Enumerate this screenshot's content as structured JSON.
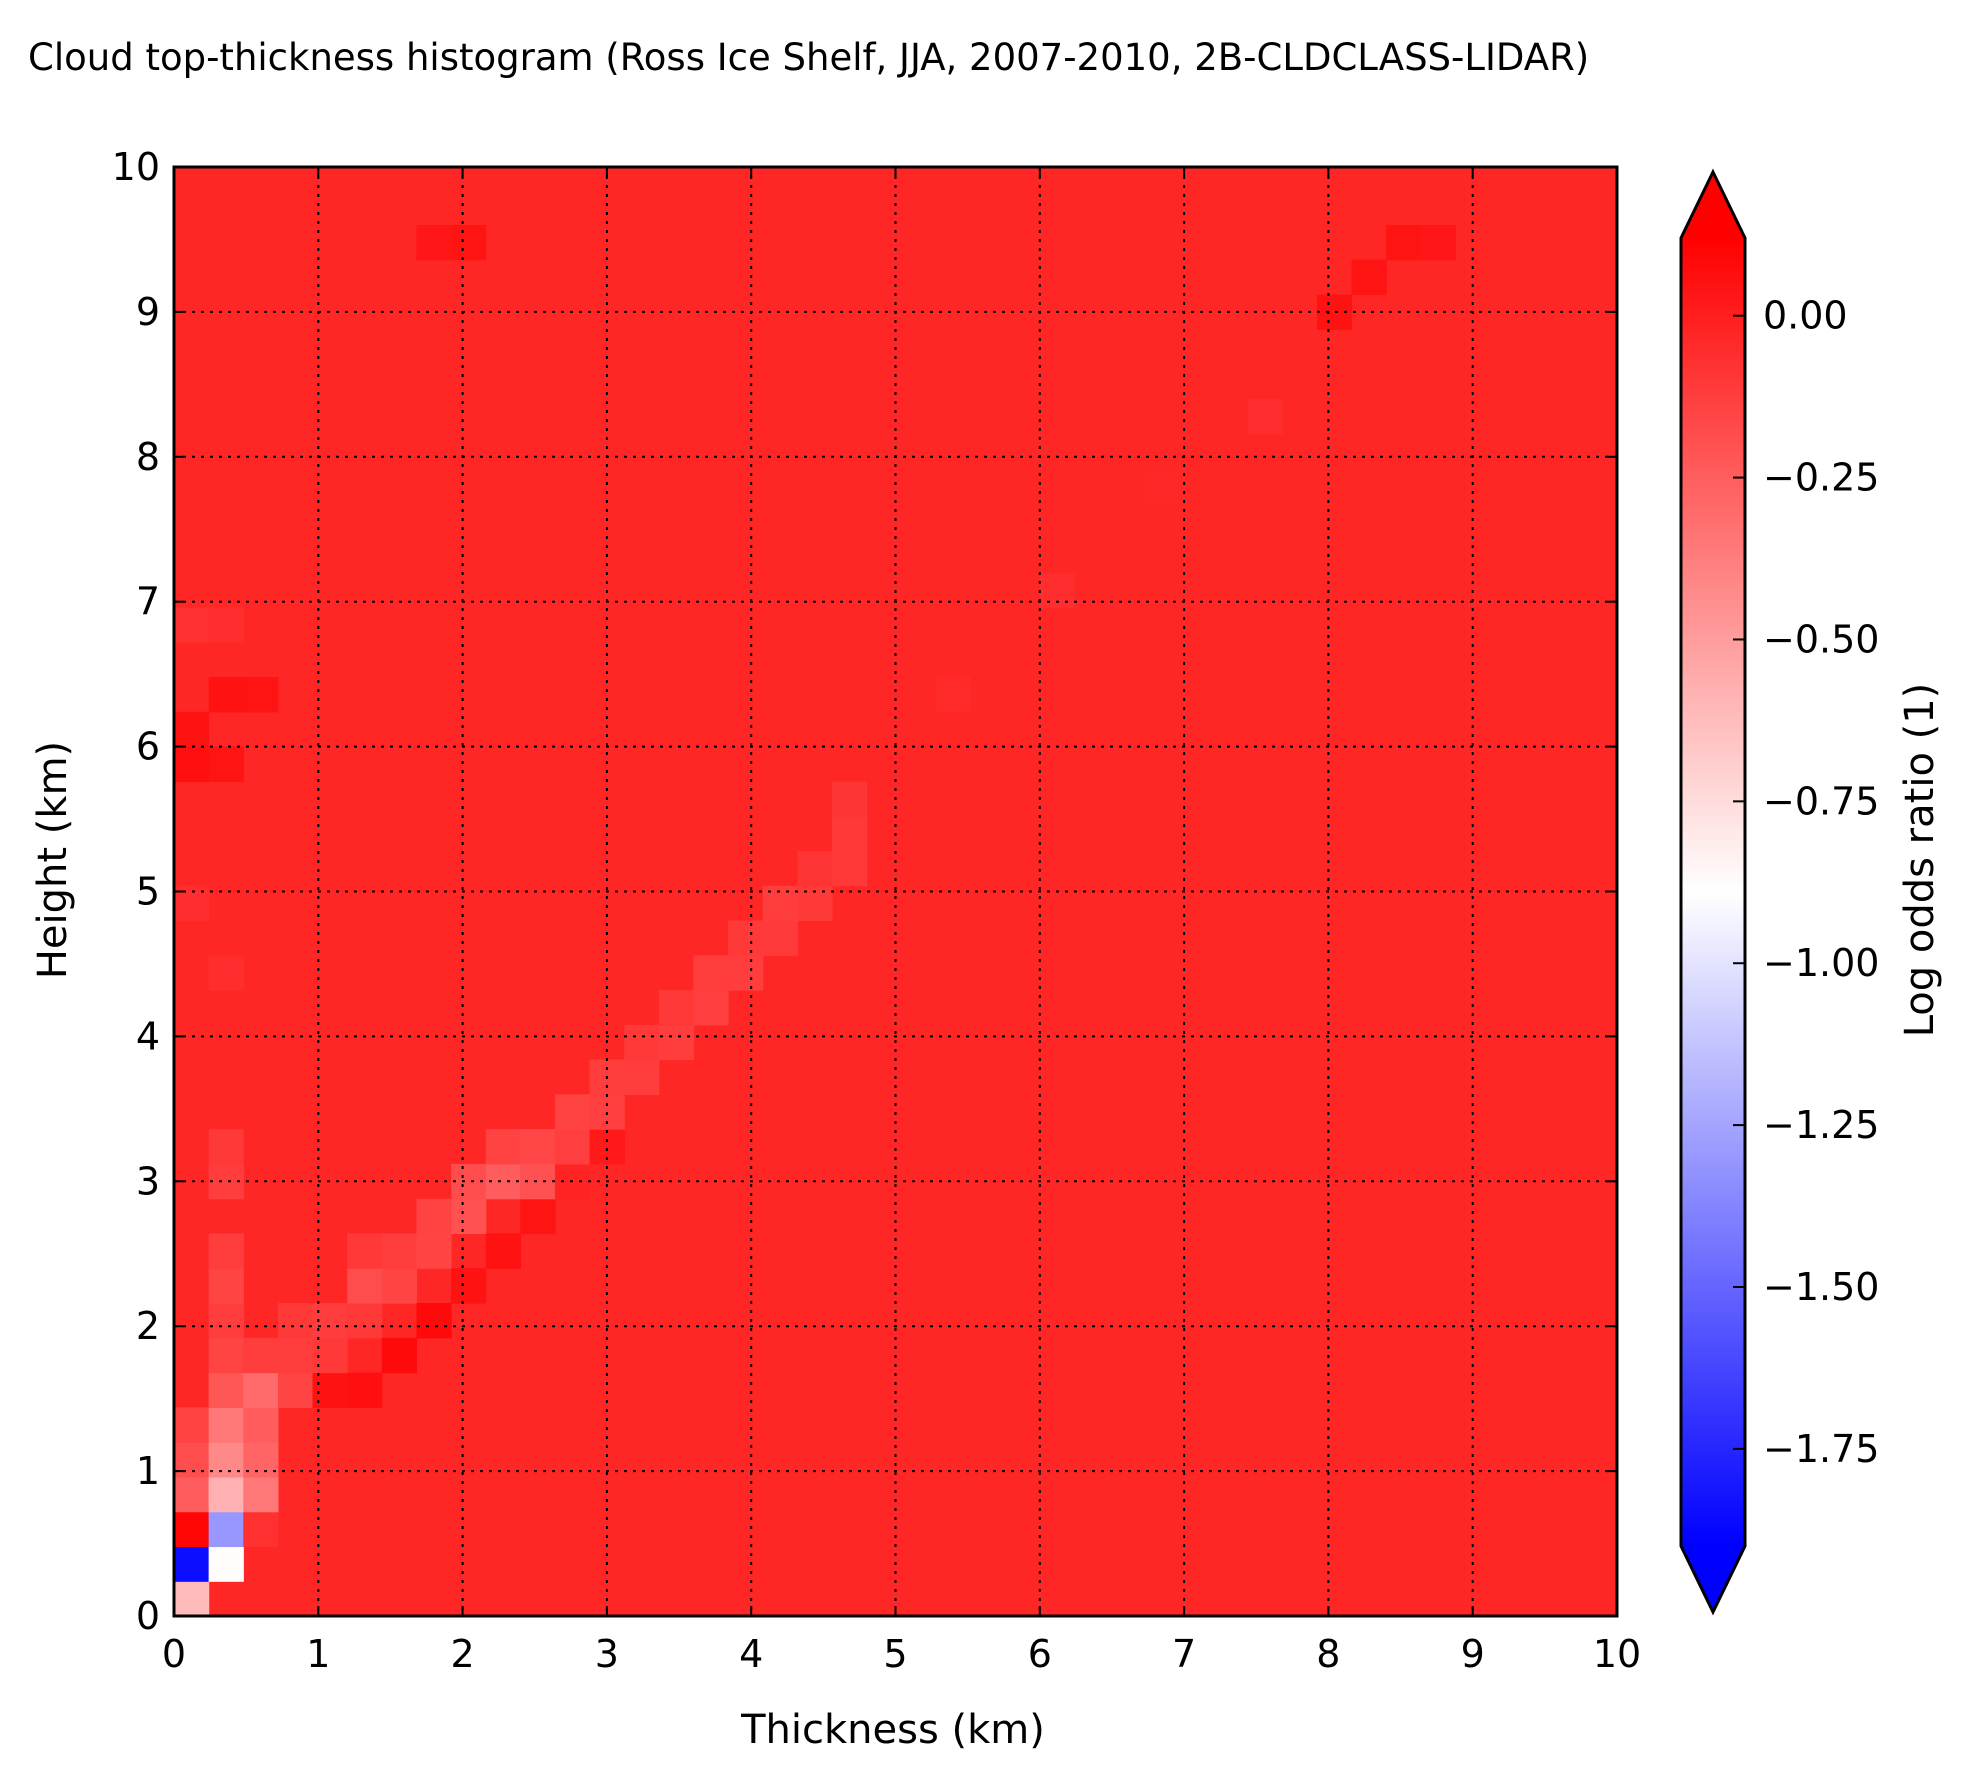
{
  "chart_data": {
    "type": "heatmap",
    "title": "Cloud top-thickness histogram (Ross Ice Shelf, JJA, 2007-2010, 2B-CLDCLASS-LIDAR)",
    "xlabel": "Thickness (km)",
    "ylabel": "Height (km)",
    "xlim": [
      0,
      10
    ],
    "ylim": [
      0,
      10
    ],
    "x_ticks": [
      "0",
      "1",
      "2",
      "3",
      "4",
      "5",
      "6",
      "7",
      "8",
      "9",
      "10"
    ],
    "y_ticks": [
      "0",
      "1",
      "2",
      "3",
      "4",
      "5",
      "6",
      "7",
      "8",
      "9",
      "10"
    ],
    "grid": true,
    "bin_size_km": 0.24,
    "n_bins": 40,
    "background_value": -0.03,
    "colorbar": {
      "label": "Log odds ratio (1)",
      "range": [
        -1.9,
        0.12
      ],
      "extend": "both",
      "ticks": [
        "0.00",
        "−0.25",
        "−0.50",
        "−0.75",
        "−1.00",
        "−1.25",
        "−1.50",
        "−1.75"
      ],
      "tick_values": [
        0.0,
        -0.25,
        -0.5,
        -0.75,
        -1.0,
        -1.25,
        -1.5,
        -1.75
      ],
      "colormap": "bwr",
      "colors": {
        "low": "#0000ff",
        "mid": "#ffffff",
        "high": "#ff0000"
      }
    },
    "cells": [
      {
        "x": 0.12,
        "y": 0.12,
        "v": -0.62
      },
      {
        "x": 0.12,
        "y": 0.36,
        "v": -1.85
      },
      {
        "x": 0.12,
        "y": 0.6,
        "v": 0.1
      },
      {
        "x": 0.12,
        "y": 0.84,
        "v": -0.25
      },
      {
        "x": 0.12,
        "y": 1.08,
        "v": -0.18
      },
      {
        "x": 0.12,
        "y": 1.32,
        "v": -0.14
      },
      {
        "x": 0.36,
        "y": 0.36,
        "v": -0.88
      },
      {
        "x": 0.36,
        "y": 0.6,
        "v": -1.3
      },
      {
        "x": 0.36,
        "y": 0.84,
        "v": -0.58
      },
      {
        "x": 0.36,
        "y": 1.08,
        "v": -0.42
      },
      {
        "x": 0.36,
        "y": 1.32,
        "v": -0.35
      },
      {
        "x": 0.36,
        "y": 1.56,
        "v": -0.22
      },
      {
        "x": 0.36,
        "y": 1.8,
        "v": -0.15
      },
      {
        "x": 0.36,
        "y": 2.04,
        "v": -0.12
      },
      {
        "x": 0.36,
        "y": 2.28,
        "v": -0.15
      },
      {
        "x": 0.36,
        "y": 2.52,
        "v": -0.12
      },
      {
        "x": 0.36,
        "y": 3.0,
        "v": -0.12
      },
      {
        "x": 0.36,
        "y": 3.24,
        "v": -0.1
      },
      {
        "x": 0.6,
        "y": 0.6,
        "v": -0.07
      },
      {
        "x": 0.6,
        "y": 0.84,
        "v": -0.35
      },
      {
        "x": 0.6,
        "y": 1.08,
        "v": -0.28
      },
      {
        "x": 0.6,
        "y": 1.32,
        "v": -0.25
      },
      {
        "x": 0.6,
        "y": 1.56,
        "v": -0.3
      },
      {
        "x": 0.6,
        "y": 1.8,
        "v": -0.12
      },
      {
        "x": 0.84,
        "y": 1.56,
        "v": -0.15
      },
      {
        "x": 0.84,
        "y": 1.8,
        "v": -0.12
      },
      {
        "x": 0.84,
        "y": 2.04,
        "v": -0.1
      },
      {
        "x": 1.08,
        "y": 1.56,
        "v": 0.05
      },
      {
        "x": 1.08,
        "y": 1.8,
        "v": -0.1
      },
      {
        "x": 1.08,
        "y": 2.04,
        "v": -0.12
      },
      {
        "x": 1.32,
        "y": 1.56,
        "v": 0.06
      },
      {
        "x": 1.32,
        "y": 2.04,
        "v": -0.1
      },
      {
        "x": 1.32,
        "y": 2.28,
        "v": -0.18
      },
      {
        "x": 1.32,
        "y": 2.52,
        "v": -0.1
      },
      {
        "x": 1.56,
        "y": 1.8,
        "v": 0.08
      },
      {
        "x": 1.56,
        "y": 2.28,
        "v": -0.15
      },
      {
        "x": 1.56,
        "y": 2.52,
        "v": -0.12
      },
      {
        "x": 1.8,
        "y": 2.04,
        "v": 0.08
      },
      {
        "x": 1.8,
        "y": 2.52,
        "v": -0.15
      },
      {
        "x": 1.8,
        "y": 2.76,
        "v": -0.14
      },
      {
        "x": 2.04,
        "y": 2.28,
        "v": 0.05
      },
      {
        "x": 2.04,
        "y": 2.76,
        "v": -0.2
      },
      {
        "x": 2.04,
        "y": 3.0,
        "v": -0.18
      },
      {
        "x": 2.28,
        "y": 2.52,
        "v": 0.05
      },
      {
        "x": 2.28,
        "y": 3.0,
        "v": -0.25
      },
      {
        "x": 2.28,
        "y": 3.24,
        "v": -0.14
      },
      {
        "x": 2.52,
        "y": 2.76,
        "v": 0.04
      },
      {
        "x": 2.52,
        "y": 3.0,
        "v": -0.2
      },
      {
        "x": 2.52,
        "y": 3.24,
        "v": -0.16
      },
      {
        "x": 2.76,
        "y": 3.0,
        "v": -0.02
      },
      {
        "x": 2.76,
        "y": 3.24,
        "v": -0.13
      },
      {
        "x": 2.76,
        "y": 3.48,
        "v": -0.14
      },
      {
        "x": 3.0,
        "y": 3.24,
        "v": 0.02
      },
      {
        "x": 3.0,
        "y": 3.48,
        "v": -0.13
      },
      {
        "x": 3.0,
        "y": 3.72,
        "v": -0.12
      },
      {
        "x": 3.24,
        "y": 3.72,
        "v": -0.12
      },
      {
        "x": 3.24,
        "y": 3.96,
        "v": -0.1
      },
      {
        "x": 3.48,
        "y": 3.96,
        "v": -0.12
      },
      {
        "x": 3.48,
        "y": 4.2,
        "v": -0.1
      },
      {
        "x": 3.72,
        "y": 4.2,
        "v": -0.13
      },
      {
        "x": 3.72,
        "y": 4.44,
        "v": -0.12
      },
      {
        "x": 3.96,
        "y": 4.44,
        "v": -0.12
      },
      {
        "x": 3.96,
        "y": 4.68,
        "v": -0.1
      },
      {
        "x": 4.2,
        "y": 4.68,
        "v": -0.11
      },
      {
        "x": 4.2,
        "y": 4.92,
        "v": -0.12
      },
      {
        "x": 4.44,
        "y": 4.92,
        "v": -0.1
      },
      {
        "x": 4.44,
        "y": 5.16,
        "v": -0.09
      },
      {
        "x": 4.68,
        "y": 5.16,
        "v": -0.1
      },
      {
        "x": 4.68,
        "y": 5.4,
        "v": -0.1
      },
      {
        "x": 4.68,
        "y": 5.64,
        "v": -0.09
      },
      {
        "x": 0.12,
        "y": 5.88,
        "v": 0.06
      },
      {
        "x": 0.12,
        "y": 6.12,
        "v": 0.05
      },
      {
        "x": 0.36,
        "y": 6.36,
        "v": 0.05
      },
      {
        "x": 0.36,
        "y": 5.88,
        "v": 0.04
      },
      {
        "x": 0.6,
        "y": 6.36,
        "v": 0.04
      },
      {
        "x": 0.12,
        "y": 6.84,
        "v": -0.07
      },
      {
        "x": 0.36,
        "y": 6.84,
        "v": -0.06
      },
      {
        "x": 0.12,
        "y": 4.92,
        "v": -0.06
      },
      {
        "x": 0.36,
        "y": 4.44,
        "v": -0.06
      },
      {
        "x": 2.04,
        "y": 9.48,
        "v": 0.04
      },
      {
        "x": 1.8,
        "y": 9.48,
        "v": 0.03
      },
      {
        "x": 8.04,
        "y": 9.0,
        "v": 0.05
      },
      {
        "x": 8.28,
        "y": 9.24,
        "v": 0.04
      },
      {
        "x": 8.52,
        "y": 9.48,
        "v": 0.04
      },
      {
        "x": 8.76,
        "y": 9.48,
        "v": 0.03
      },
      {
        "x": 7.56,
        "y": 8.28,
        "v": -0.06
      },
      {
        "x": 6.12,
        "y": 7.08,
        "v": -0.06
      },
      {
        "x": 5.4,
        "y": 6.36,
        "v": -0.05
      },
      {
        "x": 6.84,
        "y": 7.8,
        "v": -0.04
      }
    ]
  }
}
